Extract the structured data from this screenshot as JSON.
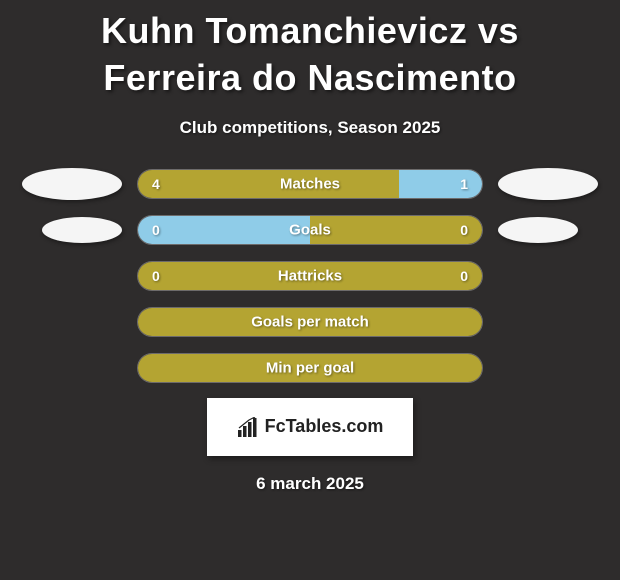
{
  "title": "Kuhn Tomanchievicz vs Ferreira do Nascimento",
  "subtitle": "Club competitions, Season 2025",
  "date_text": "6 march 2025",
  "logo_text": "FcTables.com",
  "colors": {
    "background": "#2e2c2c",
    "player1": "#b4a432",
    "player2": "#8fcce8",
    "neutral": "#b4a432",
    "text": "#ffffff",
    "ellipse": "#f5f5f5",
    "logo_bg": "#ffffff"
  },
  "stats": [
    {
      "name": "Matches",
      "left_val": "4",
      "right_val": "1",
      "left_pct": 76,
      "right_pct": 24,
      "left_color": "#b4a432",
      "right_color": "#8fcce8",
      "show_ellipse": true,
      "ellipse_size": "big"
    },
    {
      "name": "Goals",
      "left_val": "0",
      "right_val": "0",
      "left_pct": 50,
      "right_pct": 50,
      "left_color": "#8fcce8",
      "right_color": "#b4a432",
      "show_ellipse": true,
      "ellipse_size": "small"
    },
    {
      "name": "Hattricks",
      "left_val": "0",
      "right_val": "0",
      "left_pct": 50,
      "right_pct": 50,
      "left_color": "#b4a432",
      "right_color": "#b4a432",
      "show_ellipse": false,
      "ellipse_size": "big"
    },
    {
      "name": "Goals per match",
      "left_val": "",
      "right_val": "",
      "left_pct": 100,
      "right_pct": 0,
      "left_color": "#b4a432",
      "right_color": "#b4a432",
      "show_ellipse": false,
      "ellipse_size": "big"
    },
    {
      "name": "Min per goal",
      "left_val": "",
      "right_val": "",
      "left_pct": 100,
      "right_pct": 0,
      "left_color": "#b4a432",
      "right_color": "#b4a432",
      "show_ellipse": false,
      "ellipse_size": "big"
    }
  ]
}
